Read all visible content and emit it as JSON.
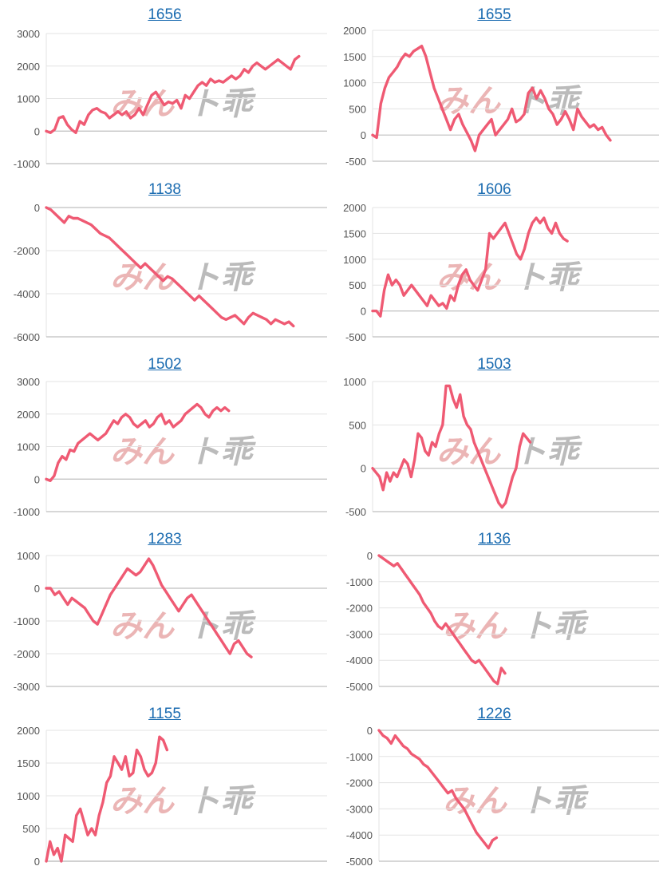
{
  "watermark": {
    "part1": "みん",
    "part2": "ト乖",
    "color1": "#e8a9a9",
    "color2": "#b0b0b0"
  },
  "colors": {
    "line": "#ef5a73",
    "title_link": "#1a6bb0"
  },
  "chart_data": [
    {
      "type": "line",
      "title": "1656",
      "yticks": [
        3000,
        2000,
        1000,
        0,
        -1000
      ],
      "ylim": [
        -1000,
        3000
      ],
      "grid": true,
      "values": [
        0,
        -50,
        50,
        400,
        450,
        200,
        50,
        -50,
        300,
        200,
        500,
        650,
        700,
        600,
        550,
        400,
        500,
        600,
        500,
        600,
        400,
        500,
        700,
        500,
        800,
        1100,
        1200,
        1000,
        800,
        900,
        850,
        950,
        700,
        1100,
        1000,
        1200,
        1400,
        1500,
        1400,
        1600,
        1500,
        1550,
        1500,
        1600,
        1700,
        1600,
        1700,
        1900,
        1800,
        2000,
        2100,
        2000,
        1900,
        2000,
        2100,
        2200,
        2100,
        2000,
        1900,
        2200,
        2300
      ]
    },
    {
      "type": "line",
      "title": "1655",
      "yticks": [
        2000,
        1500,
        1000,
        500,
        0,
        -500
      ],
      "ylim": [
        -500,
        2000
      ],
      "grid": true,
      "values": [
        0,
        -50,
        600,
        900,
        1100,
        1200,
        1300,
        1450,
        1550,
        1500,
        1600,
        1650,
        1700,
        1500,
        1200,
        900,
        700,
        500,
        300,
        100,
        300,
        400,
        200,
        50,
        -100,
        -300,
        0,
        100,
        200,
        300,
        0,
        100,
        200,
        300,
        500,
        250,
        300,
        400,
        800,
        900,
        700,
        850,
        700,
        500,
        400,
        200,
        300,
        450,
        300,
        100,
        500,
        350,
        250,
        150,
        200,
        100,
        150,
        0,
        -100
      ]
    },
    {
      "type": "line",
      "title": "1138",
      "yticks": [
        0,
        -2000,
        -4000,
        -6000
      ],
      "ylim": [
        -6000,
        0
      ],
      "grid": true,
      "values": [
        0,
        -100,
        -300,
        -500,
        -700,
        -400,
        -500,
        -500,
        -600,
        -700,
        -800,
        -1000,
        -1200,
        -1300,
        -1400,
        -1600,
        -1800,
        -2000,
        -2200,
        -2400,
        -2600,
        -2800,
        -2600,
        -2800,
        -3000,
        -3200,
        -3400,
        -3200,
        -3300,
        -3500,
        -3700,
        -3900,
        -4100,
        -4300,
        -4100,
        -4300,
        -4500,
        -4700,
        -4900,
        -5100,
        -5200,
        -5100,
        -5000,
        -5200,
        -5400,
        -5100,
        -4900,
        -5000,
        -5100,
        -5200,
        -5400,
        -5200,
        -5300,
        -5400,
        -5300,
        -5500
      ]
    },
    {
      "type": "line",
      "title": "1606",
      "yticks": [
        2000,
        1500,
        1000,
        500,
        0,
        -500
      ],
      "ylim": [
        -500,
        2000
      ],
      "grid": true,
      "values": [
        0,
        0,
        -100,
        400,
        700,
        500,
        600,
        500,
        300,
        400,
        500,
        400,
        300,
        200,
        100,
        300,
        200,
        100,
        150,
        50,
        300,
        200,
        500,
        700,
        800,
        600,
        500,
        400,
        600,
        800,
        1500,
        1400,
        1500,
        1600,
        1700,
        1500,
        1300,
        1100,
        1000,
        1200,
        1500,
        1700,
        1800,
        1700,
        1800,
        1600,
        1500,
        1700,
        1500,
        1400,
        1350
      ]
    },
    {
      "type": "line",
      "title": "1502",
      "yticks": [
        3000,
        2000,
        1000,
        0,
        -1000
      ],
      "ylim": [
        -1000,
        3000
      ],
      "grid": true,
      "values": [
        0,
        -50,
        100,
        500,
        700,
        600,
        900,
        850,
        1100,
        1200,
        1300,
        1400,
        1300,
        1200,
        1300,
        1400,
        1600,
        1800,
        1700,
        1900,
        2000,
        1900,
        1700,
        1600,
        1700,
        1800,
        1600,
        1700,
        1900,
        2000,
        1700,
        1800,
        1600,
        1700,
        1800,
        2000,
        2100,
        2200,
        2300,
        2200,
        2000,
        1900,
        2100,
        2200,
        2100,
        2200,
        2100
      ]
    },
    {
      "type": "line",
      "title": "1503",
      "yticks": [
        1000,
        500,
        0,
        -500
      ],
      "ylim": [
        -500,
        1000
      ],
      "grid": true,
      "values": [
        0,
        -50,
        -100,
        -250,
        -50,
        -150,
        -50,
        -100,
        0,
        100,
        50,
        -100,
        100,
        400,
        350,
        200,
        150,
        300,
        250,
        400,
        500,
        950,
        950,
        800,
        700,
        850,
        600,
        500,
        450,
        300,
        200,
        100,
        0,
        -100,
        -200,
        -300,
        -400,
        -450,
        -400,
        -250,
        -100,
        0,
        250,
        400,
        350,
        300
      ]
    },
    {
      "type": "line",
      "title": "1283",
      "yticks": [
        1000,
        0,
        -1000,
        -2000,
        -3000
      ],
      "ylim": [
        -3000,
        1000
      ],
      "grid": true,
      "values": [
        0,
        0,
        -200,
        -100,
        -300,
        -500,
        -300,
        -400,
        -500,
        -600,
        -800,
        -1000,
        -1100,
        -800,
        -500,
        -200,
        0,
        200,
        400,
        600,
        500,
        400,
        500,
        700,
        900,
        700,
        400,
        100,
        -100,
        -300,
        -500,
        -700,
        -500,
        -300,
        -200,
        -400,
        -600,
        -800,
        -1000,
        -1200,
        -1400,
        -1600,
        -1800,
        -2000,
        -1700,
        -1600,
        -1800,
        -2000,
        -2100
      ]
    },
    {
      "type": "line",
      "title": "1136",
      "yticks": [
        0,
        -1000,
        -2000,
        -3000,
        -4000,
        -5000
      ],
      "ylim": [
        -5000,
        0
      ],
      "grid": true,
      "values": [
        0,
        -100,
        -200,
        -300,
        -400,
        -300,
        -500,
        -700,
        -900,
        -1100,
        -1300,
        -1500,
        -1800,
        -2000,
        -2200,
        -2500,
        -2700,
        -2800,
        -2600,
        -2800,
        -3000,
        -3200,
        -3400,
        -3600,
        -3800,
        -4000,
        -4100,
        -4000,
        -4200,
        -4400,
        -4600,
        -4800,
        -4900,
        -4300,
        -4500
      ]
    },
    {
      "type": "line",
      "title": "1155",
      "yticks": [
        2000,
        1500,
        1000,
        500,
        0
      ],
      "ylim": [
        0,
        2000
      ],
      "grid": true,
      "values": [
        0,
        300,
        100,
        200,
        0,
        400,
        350,
        300,
        700,
        800,
        600,
        400,
        500,
        400,
        700,
        900,
        1200,
        1300,
        1600,
        1500,
        1400,
        1600,
        1300,
        1350,
        1700,
        1600,
        1400,
        1300,
        1350,
        1500,
        1900,
        1850,
        1700
      ]
    },
    {
      "type": "line",
      "title": "1226",
      "yticks": [
        0,
        -1000,
        -2000,
        -3000,
        -4000,
        -5000
      ],
      "ylim": [
        -5000,
        0
      ],
      "grid": true,
      "values": [
        0,
        -200,
        -300,
        -500,
        -200,
        -400,
        -600,
        -700,
        -900,
        -1000,
        -1100,
        -1300,
        -1400,
        -1600,
        -1800,
        -2000,
        -2200,
        -2400,
        -2300,
        -2600,
        -2800,
        -3000,
        -3300,
        -3600,
        -3900,
        -4100,
        -4300,
        -4500,
        -4200,
        -4100
      ]
    }
  ]
}
